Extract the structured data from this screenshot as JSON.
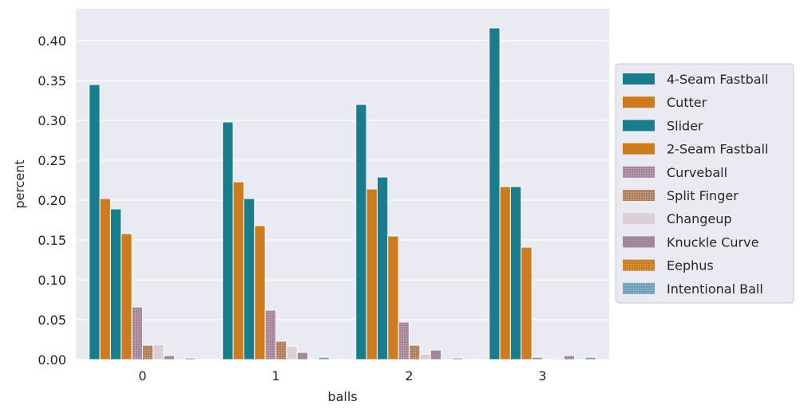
{
  "chart_data": {
    "type": "bar",
    "xlabel": "balls",
    "ylabel": "percent",
    "categories": [
      "0",
      "1",
      "2",
      "3"
    ],
    "ylim": [
      0,
      0.44
    ],
    "yticks": [
      "0.00",
      "0.05",
      "0.10",
      "0.15",
      "0.20",
      "0.25",
      "0.30",
      "0.35",
      "0.40"
    ],
    "grid": true,
    "legend_position": "right",
    "series": [
      {
        "name": "4-Seam Fastball",
        "color": "#1a7d8e",
        "pattern": "solid",
        "values": [
          0.345,
          0.298,
          0.32,
          0.416
        ]
      },
      {
        "name": "Cutter",
        "color": "#cc7b1e",
        "pattern": "solid",
        "values": [
          0.202,
          0.223,
          0.214,
          0.217
        ]
      },
      {
        "name": "Slider",
        "color": "#1a7d8e",
        "pattern": "solid",
        "values": [
          0.189,
          0.202,
          0.229,
          0.217
        ]
      },
      {
        "name": "2-Seam Fastball",
        "color": "#cc7b1e",
        "pattern": "solid",
        "values": [
          0.158,
          0.168,
          0.155,
          0.141
        ]
      },
      {
        "name": "Curveball",
        "color": "#a8879b",
        "pattern": "dots",
        "values": [
          0.066,
          0.062,
          0.047,
          0.003
        ]
      },
      {
        "name": "Split Finger",
        "color": "#b0815e",
        "pattern": "dots",
        "values": [
          0.018,
          0.023,
          0.018,
          0.0
        ]
      },
      {
        "name": "Changeup",
        "color": "#ddcfd7",
        "pattern": "solid",
        "values": [
          0.019,
          0.017,
          0.007,
          0.002
        ]
      },
      {
        "name": "Knuckle Curve",
        "color": "#a2889a",
        "pattern": "solid",
        "values": [
          0.005,
          0.009,
          0.012,
          0.005
        ]
      },
      {
        "name": "Eephus",
        "color": "#cc7b1e",
        "pattern": "dots",
        "values": [
          0.0,
          0.0,
          0.0,
          0.0
        ]
      },
      {
        "name": "Intentional Ball",
        "color": "#6fa0b8",
        "pattern": "dots",
        "values": [
          0.002,
          0.003,
          0.002,
          0.003
        ]
      }
    ]
  }
}
